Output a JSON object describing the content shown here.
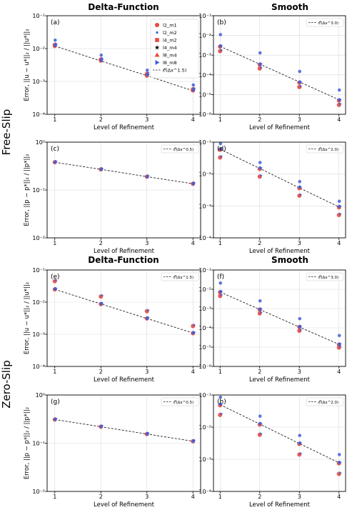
{
  "figure": {
    "row_titles": [
      "Free-Slip",
      "Zero-Slip"
    ],
    "col_titles": [
      "Delta-Function",
      "Smooth"
    ],
    "legend": [
      {
        "label": "l2_m1",
        "marker": "circle",
        "color": "#e8483e"
      },
      {
        "label": "l2_m2",
        "marker": "smallcircle",
        "color": "#3d5fd9"
      },
      {
        "label": "l4_m2",
        "marker": "square",
        "color": "#e8483e"
      },
      {
        "label": "l4_m4",
        "marker": "star",
        "color": "#3d5fd9"
      },
      {
        "label": "l8_m4",
        "marker": "triangle-up",
        "color": "#e8483e"
      },
      {
        "label": "l8_m8",
        "marker": "triangle-right",
        "color": "#3d5fd9"
      }
    ],
    "colors": {
      "red": "#e8483e",
      "blue": "#3d5fd9",
      "purple": "#a03a86",
      "grid": "#d9d9d9"
    }
  },
  "chart_data": [
    {
      "type": "scatter",
      "panel": "(a)",
      "log_y": true,
      "ylim": [
        0.0001,
        0.1
      ],
      "xlabel": "Level of Refinement",
      "ylabel": "Error, ||u − u*||₂ / ||u*||₂",
      "x": [
        1,
        2,
        3,
        4
      ],
      "ref_label": "𝒪(Δx^1.5)",
      "ref_y": [
        0.012,
        0.0042,
        0.0015,
        0.00052
      ],
      "clusters": [
        {
          "red": [
            0.013,
            0.0047,
            0.0017,
            0.00058
          ],
          "blue": [
            0.018,
            0.0063,
            0.0022,
            0.00078
          ]
        },
        {
          "red": [
            0.012,
            0.0043,
            0.0015,
            0.00053
          ],
          "blue": [
            0.0125,
            0.0044,
            0.0016,
            0.00055
          ]
        }
      ]
    },
    {
      "type": "scatter",
      "panel": "(b)",
      "log_y": true,
      "ylim": [
        1e-06,
        0.1
      ],
      "xlabel": "Level of Refinement",
      "ylabel": "",
      "x": [
        1,
        2,
        3,
        4
      ],
      "ref_label": "𝒪(Δx^3.0)",
      "ref_y": [
        0.0028,
        0.00035,
        4.4e-05,
        5.5e-06
      ],
      "clusters": [
        {
          "red": [
            0.0016,
            0.00021,
            2.4e-05,
            3e-06
          ],
          "blue": [
            0.011,
            0.0013,
            0.00015,
            1.7e-05
          ]
        },
        {
          "red": [
            0.0027,
            0.00033,
            4e-05,
            5e-06
          ],
          "blue": [
            0.0029,
            0.00035,
            4.3e-05,
            5.4e-06
          ]
        }
      ]
    },
    {
      "type": "scatter",
      "panel": "(c)",
      "log_y": true,
      "ylim": [
        0.01,
        1
      ],
      "xlabel": "Level of Refinement",
      "ylabel": "Error, ||p − p*||₂ / ||p*||₂",
      "x": [
        1,
        2,
        3,
        4
      ],
      "ref_label": "𝒪(Δx^0.5)",
      "ref_y": [
        0.38,
        0.27,
        0.19,
        0.135
      ],
      "clusters": [
        {
          "red": [
            0.38,
            0.27,
            0.19,
            0.135
          ],
          "blue": [
            0.38,
            0.27,
            0.19,
            0.135
          ]
        }
      ]
    },
    {
      "type": "scatter",
      "panel": "(d)",
      "log_y": true,
      "ylim": [
        0.0001,
        0.1
      ],
      "xlabel": "Level of Refinement",
      "ylabel": "",
      "x": [
        1,
        2,
        3,
        4
      ],
      "ref_label": "𝒪(Δx^2.0)",
      "ref_y": [
        0.06,
        0.015,
        0.0037,
        0.00093
      ],
      "clusters": [
        {
          "red": [
            0.033,
            0.0083,
            0.0021,
            0.00052
          ],
          "blue": [
            0.09,
            0.023,
            0.0058,
            0.0014
          ]
        },
        {
          "red": [
            0.058,
            0.0145,
            0.0036,
            0.0009
          ],
          "blue": [
            0.062,
            0.0155,
            0.0039,
            0.00097
          ]
        }
      ]
    },
    {
      "type": "scatter",
      "panel": "(e)",
      "log_y": true,
      "ylim": [
        0.0001,
        0.1
      ],
      "xlabel": "Level of Refinement",
      "ylabel": "Error, ||u − u*||₂ / ||u*||₂",
      "x": [
        1,
        2,
        3,
        4
      ],
      "ref_label": "𝒪(Δx^1.5)",
      "ref_y": [
        0.025,
        0.0088,
        0.0031,
        0.0011
      ],
      "clusters": [
        {
          "red": [
            0.045,
            0.015,
            0.0052,
            0.0018
          ],
          "blue": [
            0.026,
            0.009,
            0.0032,
            0.0011
          ]
        },
        {
          "red": [
            0.025,
            0.0087,
            0.0031,
            0.00108
          ],
          "blue": [
            0.0255,
            0.0089,
            0.00315,
            0.00112
          ]
        }
      ]
    },
    {
      "type": "scatter",
      "panel": "(f)",
      "log_y": true,
      "ylim": [
        1e-06,
        0.1
      ],
      "xlabel": "Level of Refinement",
      "ylabel": "",
      "x": [
        1,
        2,
        3,
        4
      ],
      "ref_label": "𝒪(Δx^3.0)",
      "ref_y": [
        0.0072,
        0.0009,
        0.00011,
        1.4e-05
      ],
      "clusters": [
        {
          "red": [
            0.0045,
            0.00056,
            7e-05,
            9.5e-06
          ],
          "blue": [
            0.021,
            0.0025,
            0.0003,
            4e-05
          ]
        },
        {
          "red": [
            0.007,
            0.00088,
            0.00011,
            1.35e-05
          ],
          "blue": [
            0.0074,
            0.00092,
            0.000115,
            1.42e-05
          ]
        }
      ]
    },
    {
      "type": "scatter",
      "panel": "(g)",
      "log_y": true,
      "ylim": [
        0.01,
        1
      ],
      "xlabel": "Level of Refinement",
      "ylabel": "Error, ||p − p*||₂ / ||p*||₂",
      "x": [
        1,
        2,
        3,
        4
      ],
      "ref_label": "𝒪(Δx^0.5)",
      "ref_y": [
        0.31,
        0.22,
        0.155,
        0.11
      ],
      "clusters": [
        {
          "red": [
            0.31,
            0.22,
            0.155,
            0.11
          ],
          "blue": [
            0.31,
            0.22,
            0.155,
            0.11
          ]
        }
      ]
    },
    {
      "type": "scatter",
      "panel": "(h)",
      "log_y": true,
      "ylim": [
        0.0001,
        0.1
      ],
      "xlabel": "Level of Refinement",
      "ylabel": "",
      "x": [
        1,
        2,
        3,
        4
      ],
      "ref_label": "𝒪(Δx^2.0)",
      "ref_y": [
        0.05,
        0.0125,
        0.0031,
        0.00078
      ],
      "clusters": [
        {
          "red": [
            0.024,
            0.0058,
            0.0014,
            0.00035
          ],
          "blue": [
            0.085,
            0.022,
            0.0055,
            0.0014
          ]
        },
        {
          "red": [
            0.048,
            0.012,
            0.003,
            0.00075
          ],
          "blue": [
            0.052,
            0.013,
            0.0032,
            0.0008
          ]
        }
      ]
    }
  ]
}
